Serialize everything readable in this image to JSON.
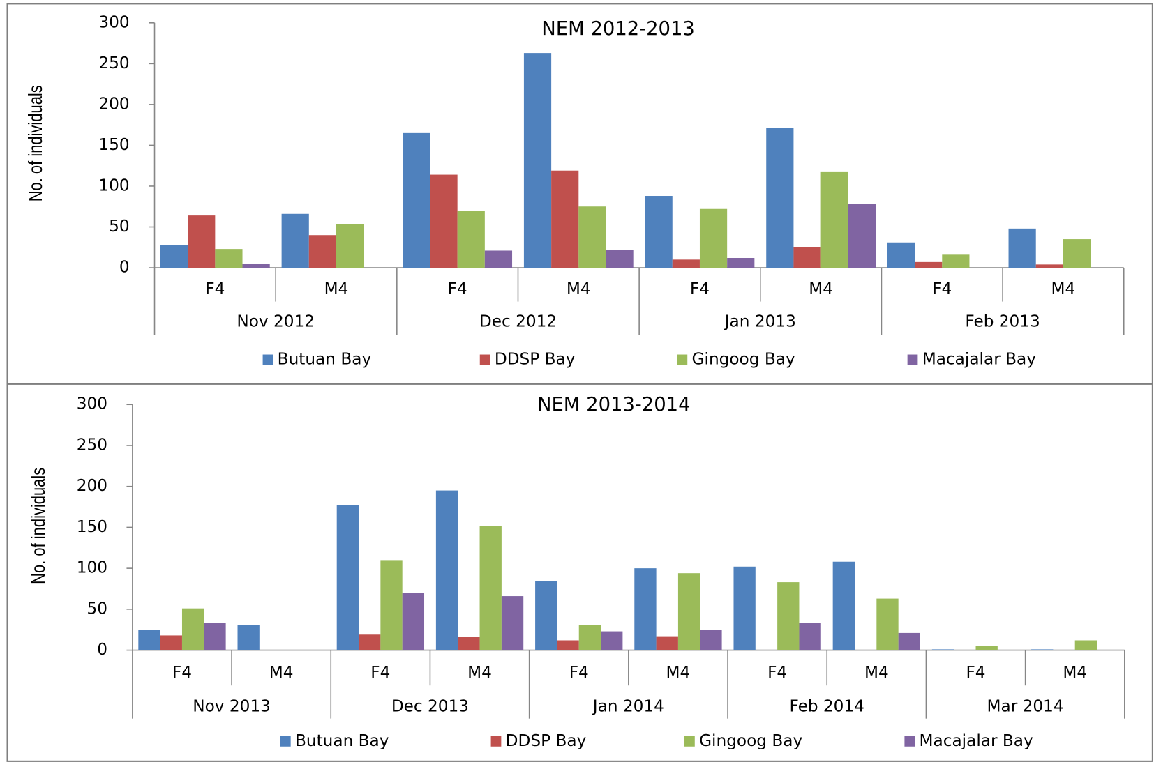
{
  "chart_data": [
    {
      "type": "bar",
      "title": "NEM 2012-2013",
      "y_label": "No. of individuals",
      "categories": [
        "F4",
        "M4",
        "F4",
        "M4",
        "F4",
        "M4",
        "F4",
        "M4"
      ],
      "groups": [
        "Nov 2012",
        "Dec 2012",
        "Jan 2013",
        "Feb 2013"
      ],
      "series": [
        {
          "name": "Butuan Bay",
          "color": "#4f81bd",
          "values": [
            28,
            66,
            165,
            263,
            88,
            171,
            31,
            48
          ]
        },
        {
          "name": "DDSP Bay",
          "color": "#c0504d",
          "values": [
            64,
            40,
            114,
            119,
            10,
            25,
            7,
            4
          ]
        },
        {
          "name": "Gingoog Bay",
          "color": "#9bbb59",
          "values": [
            23,
            53,
            70,
            75,
            72,
            118,
            16,
            35
          ]
        },
        {
          "name": "Macajalar Bay",
          "color": "#8064a2",
          "values": [
            5,
            null,
            21,
            22,
            12,
            78,
            null,
            null
          ]
        }
      ],
      "ylim": [
        0,
        300
      ],
      "yticks": [
        0,
        50,
        100,
        150,
        200,
        250,
        300
      ],
      "grid": false
    },
    {
      "type": "bar",
      "title": "NEM 2013-2014",
      "y_label": "No. of individuals",
      "categories": [
        "F4",
        "M4",
        "F4",
        "M4",
        "F4",
        "M4",
        "F4",
        "M4",
        "F4",
        "M4"
      ],
      "groups": [
        "Nov 2013",
        "Dec 2013",
        "Jan 2014",
        "Feb 2014",
        "Mar 2014"
      ],
      "series": [
        {
          "name": "Butuan Bay",
          "color": "#4f81bd",
          "values": [
            25,
            31,
            177,
            195,
            84,
            100,
            102,
            108,
            1,
            1
          ]
        },
        {
          "name": "DDSP Bay",
          "color": "#c0504d",
          "values": [
            18,
            null,
            19,
            16,
            12,
            17,
            null,
            null,
            null,
            null
          ]
        },
        {
          "name": "Gingoog Bay",
          "color": "#9bbb59",
          "values": [
            51,
            null,
            110,
            152,
            31,
            94,
            83,
            63,
            5,
            12
          ]
        },
        {
          "name": "Macajalar Bay",
          "color": "#8064a2",
          "values": [
            33,
            null,
            70,
            66,
            23,
            25,
            33,
            21,
            null,
            null
          ]
        }
      ],
      "ylim": [
        0,
        300
      ],
      "yticks": [
        0,
        50,
        100,
        150,
        200,
        250,
        300
      ],
      "grid": false
    }
  ]
}
